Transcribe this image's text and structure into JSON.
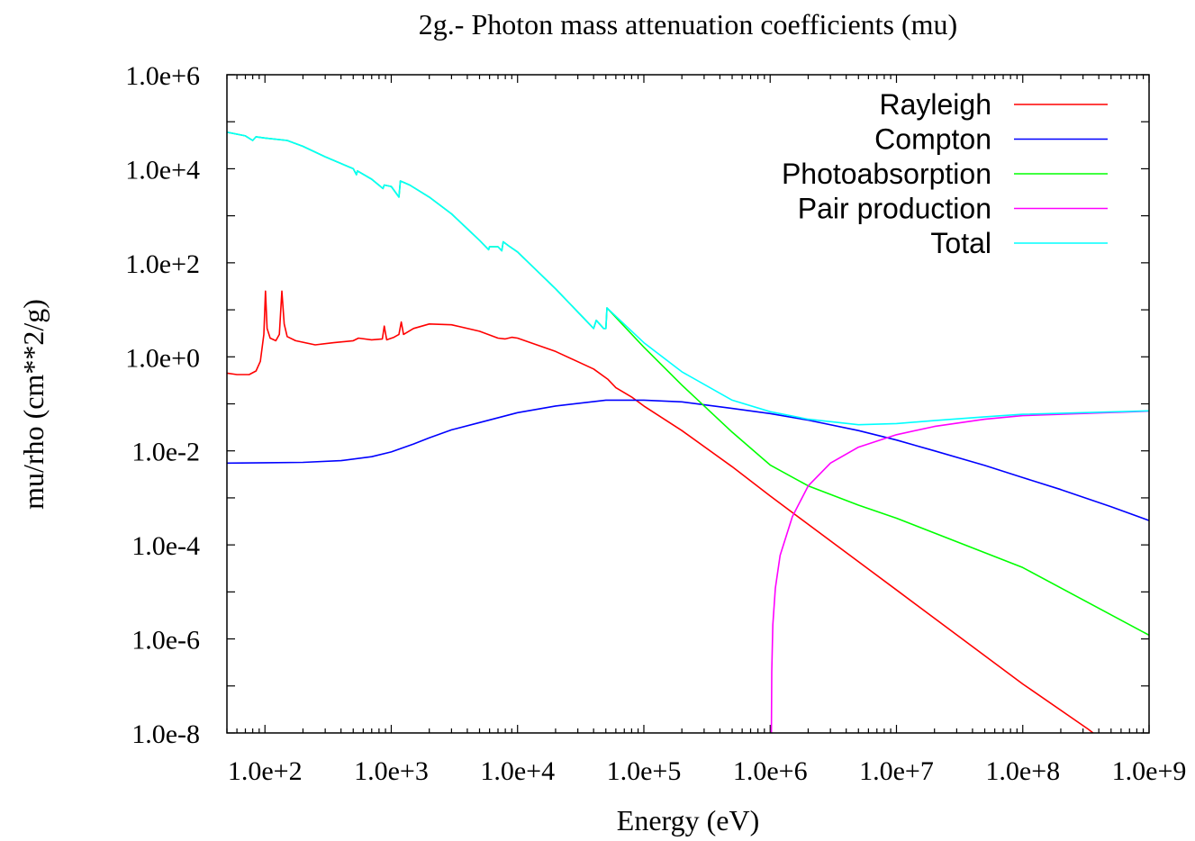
{
  "chart_data": {
    "type": "line",
    "title": "2g.- Photon mass attenuation coefficients (mu)",
    "xlabel": "Energy (eV)",
    "ylabel": "mu/rho (cm**2/g)",
    "xscale": "log",
    "yscale": "log",
    "xlim": [
      50,
      1000000000
    ],
    "ylim": [
      1e-08,
      1000000
    ],
    "x_ticks": [
      {
        "value": 100,
        "label": "1.0e+2"
      },
      {
        "value": 1000,
        "label": "1.0e+3"
      },
      {
        "value": 10000,
        "label": "1.0e+4"
      },
      {
        "value": 100000,
        "label": "1.0e+5"
      },
      {
        "value": 1000000,
        "label": "1.0e+6"
      },
      {
        "value": 10000000,
        "label": "1.0e+7"
      },
      {
        "value": 100000000,
        "label": "1.0e+8"
      },
      {
        "value": 1000000000,
        "label": "1.0e+9"
      }
    ],
    "y_ticks": [
      {
        "value": 1e-08,
        "label": "1.0e-8"
      },
      {
        "value": 1e-06,
        "label": "1.0e-6"
      },
      {
        "value": 0.0001,
        "label": "1.0e-4"
      },
      {
        "value": 0.01,
        "label": "1.0e-2"
      },
      {
        "value": 1,
        "label": "1.0e+0"
      },
      {
        "value": 100,
        "label": "1.0e+2"
      },
      {
        "value": 10000,
        "label": "1.0e+4"
      },
      {
        "value": 1000000,
        "label": "1.0e+6"
      }
    ],
    "grid": false,
    "legend_position": "top-right",
    "series": [
      {
        "name": "Rayleigh",
        "color": "#ff0000",
        "points": [
          [
            50,
            0.45
          ],
          [
            60,
            0.42
          ],
          [
            75,
            0.42
          ],
          [
            85,
            0.5
          ],
          [
            92,
            0.8
          ],
          [
            98,
            3
          ],
          [
            101,
            25
          ],
          [
            104,
            4
          ],
          [
            110,
            2.5
          ],
          [
            122,
            2.2
          ],
          [
            130,
            3
          ],
          [
            136,
            25
          ],
          [
            142,
            5
          ],
          [
            150,
            2.7
          ],
          [
            175,
            2.2
          ],
          [
            250,
            1.8
          ],
          [
            350,
            2.0
          ],
          [
            500,
            2.2
          ],
          [
            550,
            2.5
          ],
          [
            700,
            2.3
          ],
          [
            850,
            2.4
          ],
          [
            880,
            4.5
          ],
          [
            920,
            2.3
          ],
          [
            1050,
            2.6
          ],
          [
            1150,
            3.0
          ],
          [
            1200,
            5.5
          ],
          [
            1250,
            3.0
          ],
          [
            1500,
            4.0
          ],
          [
            2000,
            5.0
          ],
          [
            3000,
            4.8
          ],
          [
            5000,
            3.5
          ],
          [
            7000,
            2.5
          ],
          [
            8000,
            2.4
          ],
          [
            9000,
            2.6
          ],
          [
            10000,
            2.5
          ],
          [
            20000,
            1.3
          ],
          [
            40000,
            0.55
          ],
          [
            52000,
            0.33
          ],
          [
            60000,
            0.22
          ],
          [
            80000,
            0.14
          ],
          [
            100000,
            0.09
          ],
          [
            200000,
            0.027
          ],
          [
            500000,
            0.0046
          ],
          [
            1000000,
            0.0011
          ],
          [
            10000000,
            1.1e-05
          ],
          [
            100000000,
            1.1e-07
          ],
          [
            330000000,
            1.2e-08
          ],
          [
            360000000,
            1e-08
          ]
        ]
      },
      {
        "name": "Compton",
        "color": "#0000ff",
        "points": [
          [
            50,
            0.0055
          ],
          [
            100,
            0.0056
          ],
          [
            200,
            0.0057
          ],
          [
            400,
            0.0062
          ],
          [
            700,
            0.0075
          ],
          [
            1000,
            0.0095
          ],
          [
            1500,
            0.014
          ],
          [
            2000,
            0.019
          ],
          [
            3000,
            0.028
          ],
          [
            5000,
            0.04
          ],
          [
            10000,
            0.065
          ],
          [
            20000,
            0.09
          ],
          [
            50000,
            0.12
          ],
          [
            100000,
            0.12
          ],
          [
            200000,
            0.11
          ],
          [
            500000,
            0.08
          ],
          [
            1000000,
            0.062
          ],
          [
            2000000,
            0.045
          ],
          [
            5000000,
            0.027
          ],
          [
            10000000,
            0.017
          ],
          [
            20000000,
            0.01
          ],
          [
            50000000,
            0.0049
          ],
          [
            100000000,
            0.0027
          ],
          [
            200000000,
            0.0015
          ],
          [
            500000000,
            0.00065
          ],
          [
            1000000000,
            0.00033
          ]
        ]
      },
      {
        "name": "Photoabsorption",
        "color": "#00ff00",
        "points": [
          [
            50,
            60000
          ],
          [
            70,
            50000
          ],
          [
            80,
            40000
          ],
          [
            85,
            48000
          ],
          [
            100,
            45000
          ],
          [
            150,
            40000
          ],
          [
            200,
            30000
          ],
          [
            300,
            18000
          ],
          [
            500,
            10000
          ],
          [
            530,
            7500
          ],
          [
            540,
            9000
          ],
          [
            700,
            6000
          ],
          [
            860,
            3800
          ],
          [
            880,
            4500
          ],
          [
            1000,
            4200
          ],
          [
            1150,
            2500
          ],
          [
            1180,
            5500
          ],
          [
            1400,
            4500
          ],
          [
            2000,
            2500
          ],
          [
            3000,
            1100
          ],
          [
            5000,
            300
          ],
          [
            5900,
            190
          ],
          [
            6000,
            220
          ],
          [
            7000,
            220
          ],
          [
            7500,
            180
          ],
          [
            7700,
            280
          ],
          [
            8500,
            230
          ],
          [
            10000,
            170
          ],
          [
            20000,
            28
          ],
          [
            40000,
            4.0
          ],
          [
            42000,
            6.0
          ],
          [
            48000,
            4.0
          ],
          [
            50000,
            4.0
          ],
          [
            51000,
            11
          ],
          [
            100000,
            1.6
          ],
          [
            200000,
            0.25
          ],
          [
            500000,
            0.025
          ],
          [
            1000000,
            0.005
          ],
          [
            2000000,
            0.0018
          ],
          [
            5000000,
            0.0007
          ],
          [
            10000000,
            0.00037
          ],
          [
            100000000,
            3.3e-05
          ],
          [
            1000000000,
            1.2e-06
          ]
        ]
      },
      {
        "name": "Pair production",
        "color": "#ff00ff",
        "points": [
          [
            1022000,
            1e-08
          ],
          [
            1030000,
            2e-07
          ],
          [
            1050000,
            2e-06
          ],
          [
            1100000,
            1.2e-05
          ],
          [
            1200000,
            6e-05
          ],
          [
            1500000,
            0.0004
          ],
          [
            2000000,
            0.0018
          ],
          [
            3000000,
            0.0055
          ],
          [
            5000000,
            0.012
          ],
          [
            10000000,
            0.022
          ],
          [
            20000000,
            0.033
          ],
          [
            50000000,
            0.047
          ],
          [
            100000000,
            0.056
          ],
          [
            1000000000,
            0.07
          ]
        ]
      },
      {
        "name": "Total",
        "color": "#00ffff",
        "points": [
          [
            50,
            60000
          ],
          [
            70,
            50000
          ],
          [
            80,
            40000
          ],
          [
            85,
            48000
          ],
          [
            100,
            45000
          ],
          [
            150,
            40000
          ],
          [
            200,
            30000
          ],
          [
            300,
            18000
          ],
          [
            500,
            10000
          ],
          [
            530,
            7500
          ],
          [
            540,
            9000
          ],
          [
            700,
            6000
          ],
          [
            860,
            3800
          ],
          [
            880,
            4500
          ],
          [
            1000,
            4200
          ],
          [
            1150,
            2500
          ],
          [
            1180,
            5500
          ],
          [
            1400,
            4500
          ],
          [
            2000,
            2500
          ],
          [
            3000,
            1100
          ],
          [
            5000,
            300
          ],
          [
            5900,
            190
          ],
          [
            6000,
            220
          ],
          [
            7000,
            220
          ],
          [
            7500,
            180
          ],
          [
            7700,
            280
          ],
          [
            8500,
            230
          ],
          [
            10000,
            170
          ],
          [
            20000,
            28
          ],
          [
            40000,
            4.0
          ],
          [
            42000,
            6.0
          ],
          [
            48000,
            4.0
          ],
          [
            50000,
            4.0
          ],
          [
            51000,
            11
          ],
          [
            100000,
            2.0
          ],
          [
            200000,
            0.48
          ],
          [
            500000,
            0.12
          ],
          [
            1000000,
            0.068
          ],
          [
            2000000,
            0.047
          ],
          [
            5000000,
            0.036
          ],
          [
            10000000,
            0.038
          ],
          [
            20000000,
            0.044
          ],
          [
            50000000,
            0.053
          ],
          [
            100000000,
            0.06
          ],
          [
            1000000000,
            0.071
          ]
        ]
      }
    ]
  }
}
